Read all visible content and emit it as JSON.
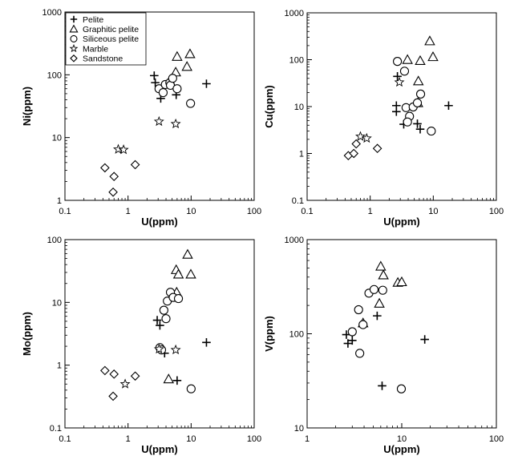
{
  "chart_data": [
    {
      "type": "scatter",
      "xlabel": "U(ppm)",
      "ylabel": "Ni(ppm)",
      "xscale": "log",
      "yscale": "log",
      "xlim": [
        0.1,
        100
      ],
      "ylim": [
        1,
        1000
      ],
      "xticks": [
        "0.1",
        "1",
        "10",
        "100"
      ],
      "yticks": [
        "1",
        "10",
        "100",
        "1000"
      ],
      "legend": {
        "placement": "top-left",
        "entries": [
          {
            "name": "Pelite",
            "marker": "plus"
          },
          {
            "name": "Graphitic pelite",
            "marker": "triangle"
          },
          {
            "name": "Siliceous pelite",
            "marker": "circle"
          },
          {
            "name": "Marble",
            "marker": "star"
          },
          {
            "name": "Sandstone",
            "marker": "diamond"
          }
        ]
      },
      "series": [
        {
          "key": "pelite",
          "points": [
            [
              2.6,
              97
            ],
            [
              2.7,
              75
            ],
            [
              3.3,
              42
            ],
            [
              5.8,
              48
            ],
            [
              17.5,
              72
            ]
          ]
        },
        {
          "key": "graphitic",
          "points": [
            [
              5.7,
              110
            ],
            [
              6.0,
              195
            ],
            [
              8.6,
              135
            ],
            [
              9.6,
              215
            ]
          ]
        },
        {
          "key": "siliceous",
          "points": [
            [
              3.1,
              60
            ],
            [
              3.6,
              52
            ],
            [
              3.9,
              70
            ],
            [
              4.6,
              75
            ],
            [
              4.7,
              68
            ],
            [
              5.1,
              88
            ],
            [
              6.0,
              60
            ],
            [
              9.8,
              35
            ]
          ]
        },
        {
          "key": "marble",
          "points": [
            [
              3.1,
              18
            ],
            [
              5.7,
              16.5
            ],
            [
              0.7,
              6.5
            ],
            [
              0.85,
              6.4
            ]
          ]
        },
        {
          "key": "sandstone",
          "points": [
            [
              0.43,
              3.3
            ],
            [
              0.6,
              2.4
            ],
            [
              0.58,
              1.35
            ],
            [
              1.3,
              3.7
            ]
          ]
        }
      ]
    },
    {
      "type": "scatter",
      "xlabel": "U(ppm)",
      "ylabel": "Cu(ppm)",
      "xscale": "log",
      "yscale": "log",
      "xlim": [
        0.1,
        100
      ],
      "ylim": [
        0.1,
        1000
      ],
      "xticks": [
        "0.1",
        "1",
        "10",
        "100"
      ],
      "yticks": [
        "0.1",
        "1",
        "10",
        "100",
        "1000"
      ],
      "series": [
        {
          "key": "pelite",
          "points": [
            [
              2.7,
              44
            ],
            [
              2.6,
              10.5
            ],
            [
              2.6,
              7.8
            ],
            [
              3.4,
              4.2
            ],
            [
              5.6,
              4.3
            ],
            [
              6.2,
              3.3
            ],
            [
              17.5,
              10.5
            ]
          ]
        },
        {
          "key": "graphitic",
          "points": [
            [
              3.9,
              100
            ],
            [
              6.2,
              95
            ],
            [
              8.8,
              250
            ],
            [
              9.9,
              115
            ],
            [
              5.8,
              35
            ],
            [
              5.7,
              12
            ]
          ]
        },
        {
          "key": "siliceous",
          "points": [
            [
              2.7,
              92
            ],
            [
              3.5,
              57
            ],
            [
              3.7,
              9.5
            ],
            [
              4.8,
              9.8
            ],
            [
              5.6,
              12
            ],
            [
              6.3,
              18.5
            ],
            [
              4.2,
              6.2
            ],
            [
              3.9,
              4.7
            ],
            [
              9.3,
              3
            ]
          ]
        },
        {
          "key": "marble",
          "points": [
            [
              2.9,
              33
            ],
            [
              0.7,
              2.3
            ],
            [
              0.88,
              2.1
            ]
          ]
        },
        {
          "key": "sandstone",
          "points": [
            [
              0.45,
              0.9
            ],
            [
              0.55,
              1.0
            ],
            [
              0.6,
              1.6
            ],
            [
              1.3,
              1.28
            ]
          ]
        }
      ]
    },
    {
      "type": "scatter",
      "xlabel": "U(ppm)",
      "ylabel": "Mo(ppm)",
      "xscale": "log",
      "yscale": "log",
      "xlim": [
        0.1,
        100
      ],
      "ylim": [
        0.1,
        100
      ],
      "xticks": [
        "0.1",
        "1",
        "10",
        "100"
      ],
      "yticks": [
        "0.1",
        "1",
        "10",
        "100"
      ],
      "series": [
        {
          "key": "pelite",
          "points": [
            [
              2.9,
              5.2
            ],
            [
              3.2,
              4.3
            ],
            [
              3.8,
              1.55
            ],
            [
              5.8,
              13.5
            ],
            [
              6.0,
              0.57
            ],
            [
              17.5,
              2.3
            ]
          ]
        },
        {
          "key": "graphitic",
          "points": [
            [
              5.8,
              33
            ],
            [
              6.3,
              28
            ],
            [
              8.8,
              58
            ],
            [
              9.9,
              28
            ],
            [
              5.9,
              14.5
            ],
            [
              4.4,
              0.6
            ]
          ]
        },
        {
          "key": "siliceous",
          "points": [
            [
              3.2,
              1.9
            ],
            [
              3.7,
              7.5
            ],
            [
              4.2,
              10.5
            ],
            [
              4.7,
              14.5
            ],
            [
              5.2,
              12
            ],
            [
              6.3,
              11.5
            ],
            [
              4.0,
              5.5
            ],
            [
              3.4,
              1.75
            ],
            [
              10,
              0.42
            ]
          ]
        },
        {
          "key": "marble",
          "points": [
            [
              3.1,
              1.8
            ],
            [
              5.7,
              1.75
            ],
            [
              0.9,
              0.5
            ]
          ]
        },
        {
          "key": "sandstone",
          "points": [
            [
              0.43,
              0.82
            ],
            [
              0.6,
              0.72
            ],
            [
              1.3,
              0.67
            ],
            [
              0.58,
              0.32
            ]
          ]
        }
      ]
    },
    {
      "type": "scatter",
      "xlabel": "U(ppm)",
      "ylabel": "V(ppm)",
      "xscale": "log",
      "yscale": "log",
      "xlim": [
        1,
        100
      ],
      "ylim": [
        10,
        1000
      ],
      "xticks": [
        "1",
        "10",
        "100"
      ],
      "yticks": [
        "10",
        "100",
        "1000"
      ],
      "series": [
        {
          "key": "pelite",
          "points": [
            [
              2.6,
              98
            ],
            [
              2.7,
              79
            ],
            [
              3.0,
              85
            ],
            [
              5.5,
              155
            ],
            [
              6.2,
              28
            ],
            [
              17.5,
              87
            ]
          ]
        },
        {
          "key": "graphitic",
          "points": [
            [
              5.8,
              210
            ],
            [
              6.0,
              520
            ],
            [
              6.4,
              420
            ],
            [
              9.1,
              350
            ],
            [
              10,
              355
            ],
            [
              3.9,
              130
            ]
          ]
        },
        {
          "key": "siliceous",
          "points": [
            [
              3.0,
              105
            ],
            [
              3.5,
              180
            ],
            [
              3.9,
              125
            ],
            [
              4.5,
              270
            ],
            [
              5.1,
              295
            ],
            [
              6.3,
              290
            ],
            [
              3.6,
              62
            ],
            [
              9.9,
              26
            ]
          ]
        }
      ]
    }
  ]
}
